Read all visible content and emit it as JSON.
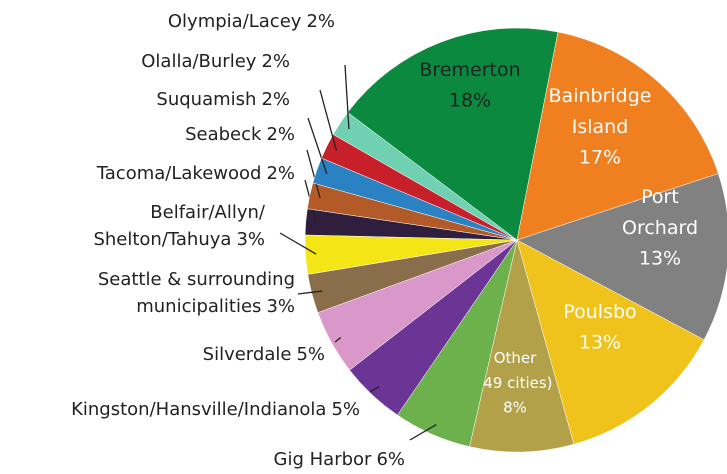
{
  "chart_data": {
    "type": "pie",
    "categories": [
      "Bremerton",
      "Bainbridge Island",
      "Port Orchard",
      "Poulsbo",
      "Other (49 cities)",
      "Gig Harbor",
      "Kingston/Hansville/Indianola",
      "Silverdale",
      "Seattle & surrounding municipalities",
      "Belfair/Allyn/Shelton/Tahuya",
      "Tacoma/Lakewood",
      "Seabeck",
      "Suquamish",
      "Olalla/Burley",
      "Olympia/Lacey"
    ],
    "values": [
      18,
      17,
      13,
      13,
      8,
      6,
      5,
      5,
      3,
      3,
      2,
      2,
      2,
      2,
      2
    ],
    "value_labels": [
      "18%",
      "17%",
      "13%",
      "13%",
      "8%",
      "6%",
      "5%",
      "5%",
      "3%",
      "3%",
      "2%",
      "2%",
      "2%",
      "2%",
      "2%"
    ],
    "colors": [
      "#0b8a3f",
      "#f07f1f",
      "#818181",
      "#f0c21c",
      "#b3a14a",
      "#6cb14b",
      "#6b3595",
      "#d998c9",
      "#8a6d4a",
      "#f4e616",
      "#2f1e3d",
      "#b25a28",
      "#2b82c2",
      "#c8202b",
      "#70d0b2"
    ]
  }
}
